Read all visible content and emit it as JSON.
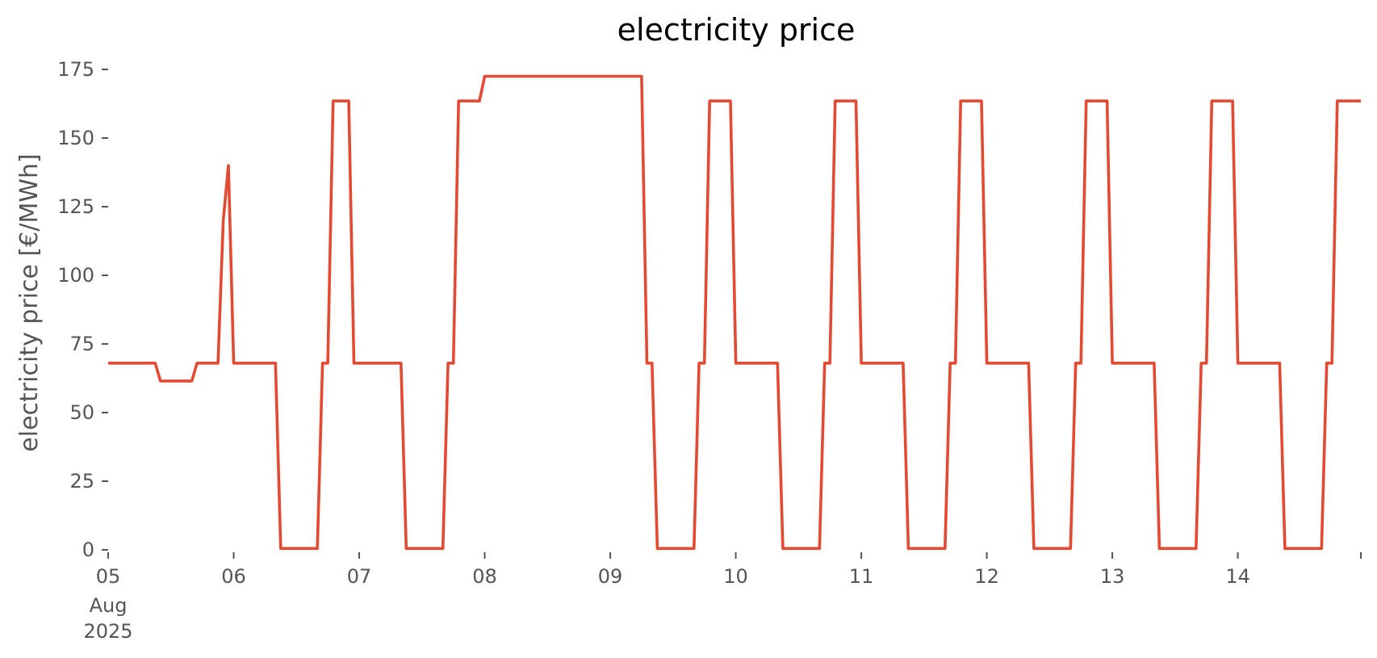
{
  "chart_data": {
    "type": "line",
    "title": "electricity price",
    "xlabel": "",
    "ylabel": "electricity price [€/MWh]",
    "x_unit": "days since 2025-08-05 00:00",
    "xlim": [
      0,
      9.98
    ],
    "ylim": [
      0,
      175
    ],
    "grid": false,
    "legend": null,
    "yticks": [
      0,
      25,
      50,
      75,
      100,
      125,
      150,
      175
    ],
    "ytick_labels": [
      "0",
      "25",
      "50",
      "75",
      "100",
      "125",
      "150",
      "175"
    ],
    "xticks": [
      0,
      1,
      2,
      3,
      4,
      5,
      6,
      7,
      8,
      9,
      10
    ],
    "xtick_labels": [
      "05",
      "06",
      "07",
      "08",
      "09",
      "10",
      "11",
      "12",
      "13",
      "14",
      ""
    ],
    "xtick_extra_lines": [
      "Aug",
      "2025"
    ],
    "series": [
      {
        "color": "#E24A33",
        "x": [
          0,
          0.375,
          0.417,
          0.667,
          0.708,
          0.875,
          0.917,
          0.958,
          1.0,
          1.333,
          1.375,
          1.667,
          1.708,
          1.75,
          1.792,
          1.917,
          1.958,
          2.333,
          2.375,
          2.667,
          2.708,
          2.75,
          2.792,
          2.958,
          3.0,
          4.25,
          4.292,
          4.333,
          4.375,
          4.667,
          4.708,
          4.75,
          4.792,
          4.958,
          5.0,
          5.333,
          5.375,
          5.667,
          5.708,
          5.75,
          5.792,
          5.958,
          6.0,
          6.333,
          6.375,
          6.667,
          6.708,
          6.75,
          6.792,
          6.958,
          7.0,
          7.333,
          7.375,
          7.667,
          7.708,
          7.75,
          7.792,
          7.958,
          8.0,
          8.333,
          8.375,
          8.667,
          8.708,
          8.75,
          8.792,
          8.958,
          9.0,
          9.333,
          9.375,
          9.667,
          9.708,
          9.75,
          9.792,
          9.98
        ],
        "y": [
          68,
          68,
          61.5,
          61.5,
          68,
          68,
          120,
          140,
          68,
          68,
          0.5,
          0.5,
          68,
          68,
          163.5,
          163.5,
          68,
          68,
          0.5,
          0.5,
          68,
          68,
          163.5,
          163.5,
          172.5,
          172.5,
          68,
          68,
          0.5,
          0.5,
          68,
          68,
          163.5,
          163.5,
          68,
          68,
          0.5,
          0.5,
          68,
          68,
          163.5,
          163.5,
          68,
          68,
          0.5,
          0.5,
          68,
          68,
          163.5,
          163.5,
          68,
          68,
          0.5,
          0.5,
          68,
          68,
          163.5,
          163.5,
          68,
          68,
          0.5,
          0.5,
          68,
          68,
          163.5,
          163.5,
          68,
          68,
          0.5,
          0.5,
          68,
          68,
          163.5,
          163.5
        ]
      }
    ]
  }
}
